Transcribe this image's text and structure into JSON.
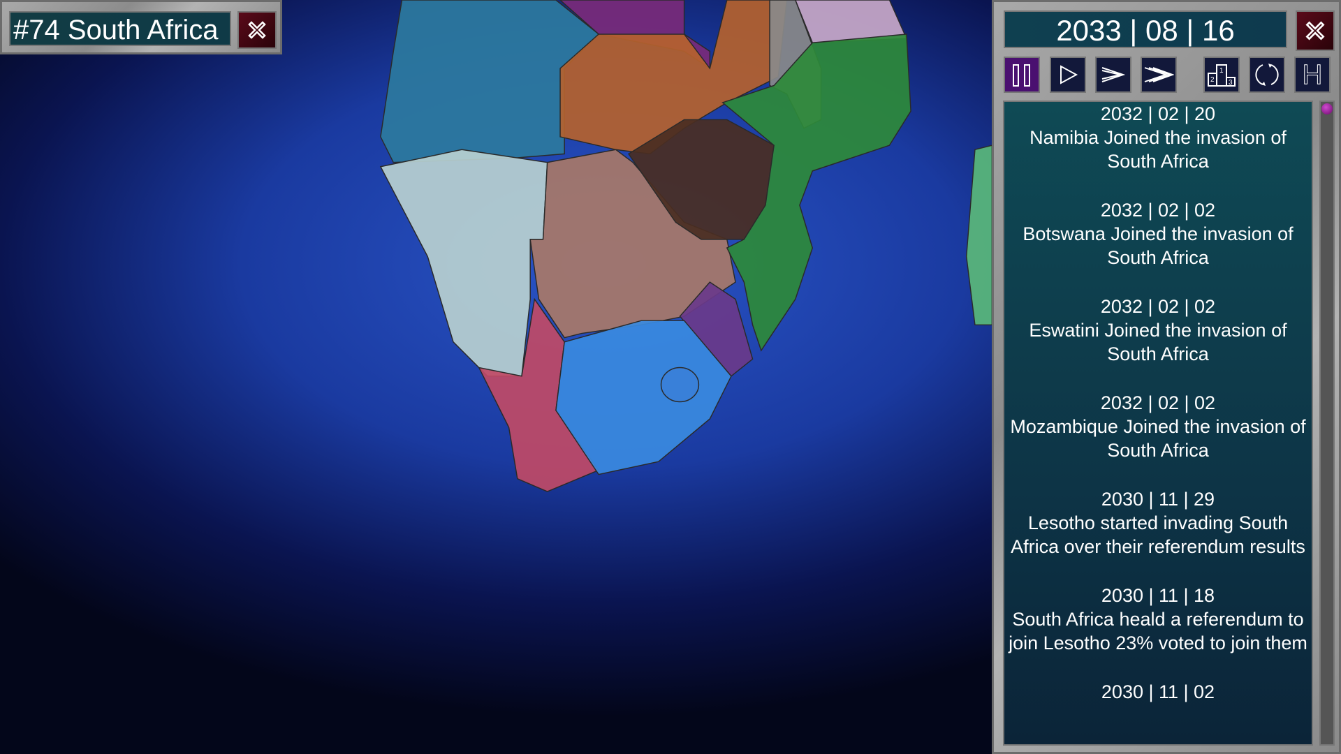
{
  "country_panel": {
    "title": "#74 South Africa",
    "close_icon": "close-x-icon"
  },
  "side_panel": {
    "date": "2033 | 08 | 16",
    "close_icon": "close-x-icon",
    "controls": [
      {
        "name": "pause",
        "icon": "pause-icon",
        "active": true
      },
      {
        "name": "play",
        "icon": "play-icon"
      },
      {
        "name": "fast",
        "icon": "fast-forward-icon"
      },
      {
        "name": "fastest",
        "icon": "fastest-forward-icon"
      },
      {
        "name": "leaderboard",
        "icon": "podium-icon",
        "labels": [
          "1",
          "2",
          "3"
        ]
      },
      {
        "name": "refresh",
        "icon": "refresh-icon"
      },
      {
        "name": "help",
        "icon": "h-icon",
        "label": "H"
      }
    ],
    "colors": {
      "active": "#4a1070",
      "button": "#12183a",
      "close": "#5a0a1a"
    },
    "events": [
      {
        "date": "2032 | 02 | 20",
        "text": "Namibia Joined the invasion of South Africa"
      },
      {
        "date": "2032 | 02 | 02",
        "text": "Botswana Joined the invasion of South Africa"
      },
      {
        "date": "2032 | 02 | 02",
        "text": "Eswatini Joined the invasion of South Africa"
      },
      {
        "date": "2032 | 02 | 02",
        "text": "Mozambique Joined the invasion of South Africa"
      },
      {
        "date": "2030 | 11 | 29",
        "text": "Lesotho started invading South Africa over their referendum results"
      },
      {
        "date": "2030 | 11 | 18",
        "text": "South Africa heald a referendum to join Lesotho 23% voted to join them"
      },
      {
        "date": "2030 | 11 | 02",
        "text": ""
      }
    ]
  }
}
